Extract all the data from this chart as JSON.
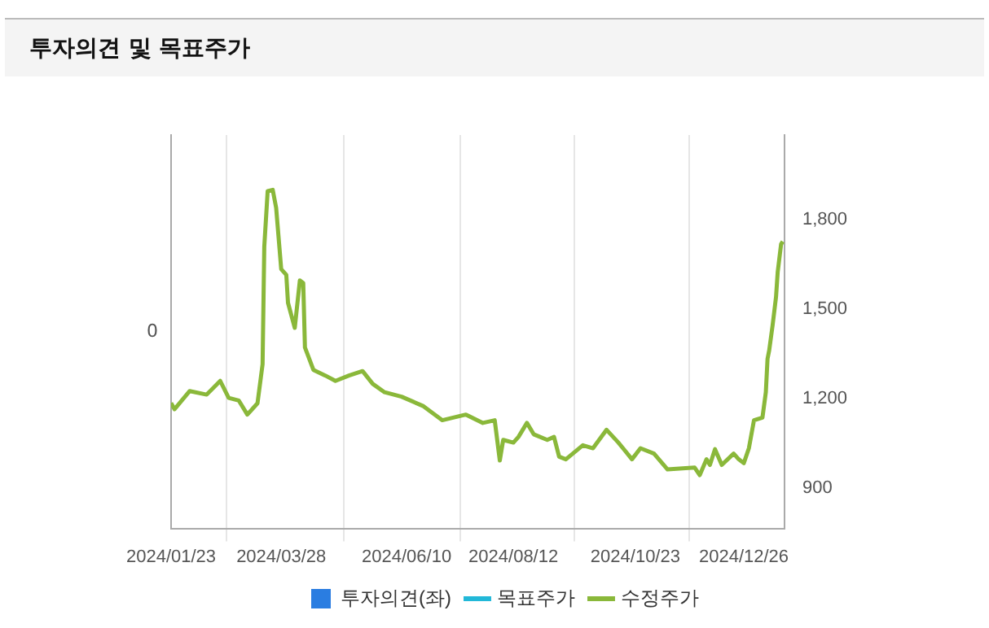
{
  "chart_data": {
    "type": "line",
    "title": "투자의견 및 목표주가",
    "xlim": [
      "2024-01-23",
      "2025-01-19"
    ],
    "xticks": [
      {
        "value": "2024-01-23",
        "label": "2024/01/23"
      },
      {
        "value": "2024-03-28",
        "label": "2024/03/28"
      },
      {
        "value": "2024-06-10",
        "label": "2024/06/10"
      },
      {
        "value": "2024-08-12",
        "label": "2024/08/12"
      },
      {
        "value": "2024-10-23",
        "label": "2024/10/23"
      },
      {
        "value": "2024-12-26",
        "label": "2024/12/26"
      }
    ],
    "y2lim": [
      765,
      2085
    ],
    "y2ticks": [
      {
        "value": 900,
        "label": "900"
      },
      {
        "value": 1200,
        "label": "1,200"
      },
      {
        "value": 1500,
        "label": "1,500"
      },
      {
        "value": 1800,
        "label": "1,800"
      }
    ],
    "annotations": [
      "0"
    ],
    "grid": "x",
    "legend": "bottom",
    "marker": "none",
    "line_style": "solid",
    "series": [
      {
        "name": "투자의견(좌)",
        "type": "bar",
        "color": "#2a7de1"
      },
      {
        "name": "목표주가",
        "color": "#22b8d8",
        "axis": "y2"
      },
      {
        "name": "수정주가",
        "color": "#8ab83a",
        "axis": "y2",
        "x": [
          "2024-01-23",
          "2024-01-25",
          "2024-02-03",
          "2024-02-13",
          "2024-02-21",
          "2024-02-26",
          "2024-03-03",
          "2024-03-08",
          "2024-03-14",
          "2024-03-17",
          "2024-03-18",
          "2024-03-20",
          "2024-03-23",
          "2024-03-25",
          "2024-03-28",
          "2024-03-31",
          "2024-04-01",
          "2024-04-05",
          "2024-04-08",
          "2024-04-10",
          "2024-04-11",
          "2024-04-16",
          "2024-04-23",
          "2024-04-29",
          "2024-05-07",
          "2024-05-15",
          "2024-05-21",
          "2024-05-28",
          "2024-06-07",
          "2024-06-20",
          "2024-07-01",
          "2024-07-15",
          "2024-07-25",
          "2024-08-01",
          "2024-08-04",
          "2024-08-06",
          "2024-08-12",
          "2024-08-15",
          "2024-08-20",
          "2024-08-24",
          "2024-09-01",
          "2024-09-05",
          "2024-09-08",
          "2024-09-12",
          "2024-09-22",
          "2024-09-28",
          "2024-10-06",
          "2024-10-13",
          "2024-10-21",
          "2024-10-26",
          "2024-11-03",
          "2024-11-11",
          "2024-11-27",
          "2024-11-30",
          "2024-12-04",
          "2024-12-06",
          "2024-12-09",
          "2024-12-13",
          "2024-12-20",
          "2024-12-23",
          "2024-12-26",
          "2024-12-29",
          "2025-01-01",
          "2025-01-06",
          "2025-01-08",
          "2025-01-09",
          "2025-01-10",
          "2025-01-12",
          "2025-01-14",
          "2025-01-15",
          "2025-01-17",
          "2025-01-18"
        ],
        "values": [
          1186,
          1165,
          1226,
          1214,
          1260,
          1203,
          1194,
          1147,
          1185,
          1316,
          1710,
          1897,
          1901,
          1841,
          1635,
          1616,
          1522,
          1438,
          1597,
          1588,
          1372,
          1297,
          1278,
          1260,
          1278,
          1293,
          1250,
          1222,
          1207,
          1175,
          1128,
          1147,
          1119,
          1128,
          993,
          1062,
          1053,
          1072,
          1119,
          1081,
          1062,
          1072,
          1006,
          997,
          1044,
          1034,
          1096,
          1053,
          997,
          1034,
          1016,
          963,
          969,
          944,
          997,
          978,
          1031,
          978,
          1016,
          997,
          984,
          1034,
          1128,
          1137,
          1222,
          1334,
          1363,
          1447,
          1541,
          1625,
          1719,
          1728
        ]
      }
    ]
  }
}
